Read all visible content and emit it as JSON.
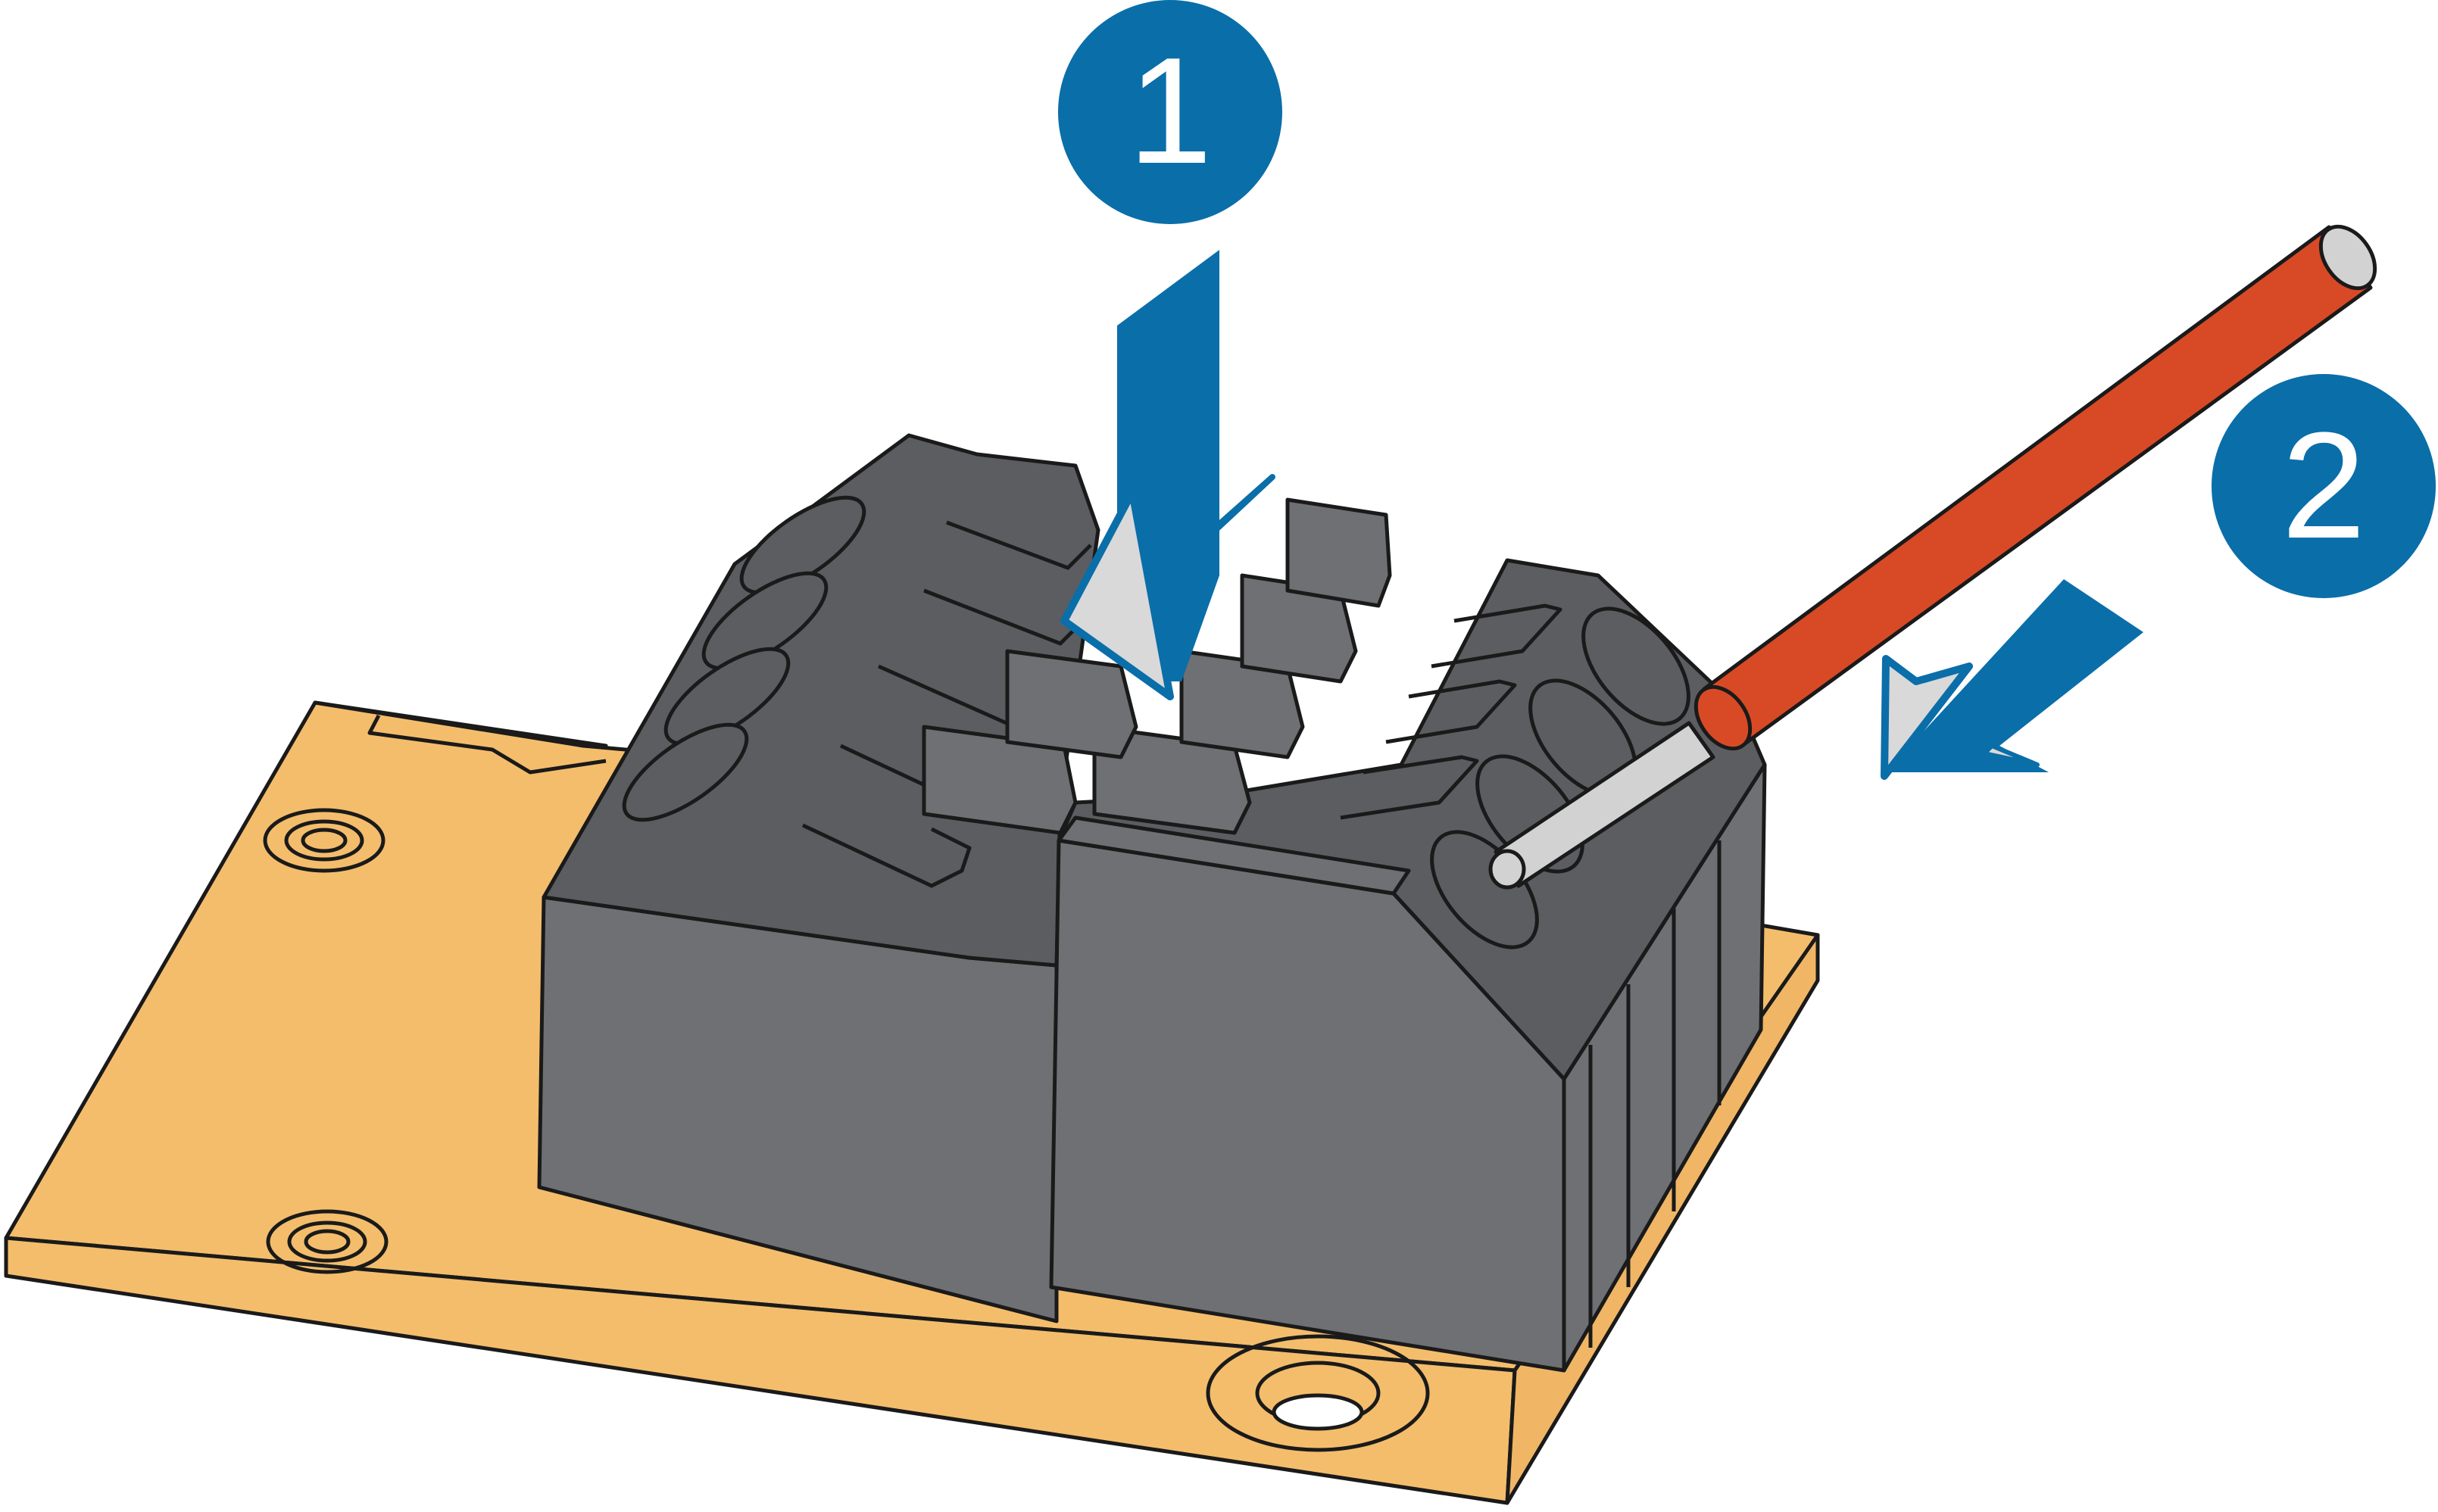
{
  "diagram": {
    "steps": [
      {
        "number": "1"
      },
      {
        "number": "2"
      }
    ]
  },
  "colors": {
    "board": "#f4bd6c",
    "board_edge": "#f0b665",
    "connector": "#6f7073",
    "connector_top": "#5c5d60",
    "outline": "#1a1a1a",
    "step_badge": "#0a6ea9",
    "arrow": "#0a6ea9",
    "arrow_tip": "#d9d9d9",
    "wire_insulation": "#d84a26",
    "wire_ferrule": "#d2d2d2"
  }
}
